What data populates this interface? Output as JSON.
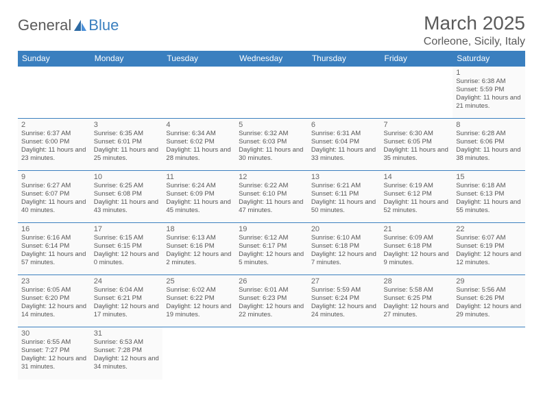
{
  "logo": {
    "text1": "General",
    "text2": "Blue"
  },
  "title": "March 2025",
  "location": "Corleone, Sicily, Italy",
  "columns": [
    "Sunday",
    "Monday",
    "Tuesday",
    "Wednesday",
    "Thursday",
    "Friday",
    "Saturday"
  ],
  "header_bg": "#3a7fbf",
  "cell_border": "#3a7fbf",
  "weeks": [
    [
      null,
      null,
      null,
      null,
      null,
      null,
      {
        "n": "1",
        "sr": "6:38 AM",
        "ss": "5:59 PM",
        "dl": "11 hours and 21 minutes."
      }
    ],
    [
      {
        "n": "2",
        "sr": "6:37 AM",
        "ss": "6:00 PM",
        "dl": "11 hours and 23 minutes."
      },
      {
        "n": "3",
        "sr": "6:35 AM",
        "ss": "6:01 PM",
        "dl": "11 hours and 25 minutes."
      },
      {
        "n": "4",
        "sr": "6:34 AM",
        "ss": "6:02 PM",
        "dl": "11 hours and 28 minutes."
      },
      {
        "n": "5",
        "sr": "6:32 AM",
        "ss": "6:03 PM",
        "dl": "11 hours and 30 minutes."
      },
      {
        "n": "6",
        "sr": "6:31 AM",
        "ss": "6:04 PM",
        "dl": "11 hours and 33 minutes."
      },
      {
        "n": "7",
        "sr": "6:30 AM",
        "ss": "6:05 PM",
        "dl": "11 hours and 35 minutes."
      },
      {
        "n": "8",
        "sr": "6:28 AM",
        "ss": "6:06 PM",
        "dl": "11 hours and 38 minutes."
      }
    ],
    [
      {
        "n": "9",
        "sr": "6:27 AM",
        "ss": "6:07 PM",
        "dl": "11 hours and 40 minutes."
      },
      {
        "n": "10",
        "sr": "6:25 AM",
        "ss": "6:08 PM",
        "dl": "11 hours and 43 minutes."
      },
      {
        "n": "11",
        "sr": "6:24 AM",
        "ss": "6:09 PM",
        "dl": "11 hours and 45 minutes."
      },
      {
        "n": "12",
        "sr": "6:22 AM",
        "ss": "6:10 PM",
        "dl": "11 hours and 47 minutes."
      },
      {
        "n": "13",
        "sr": "6:21 AM",
        "ss": "6:11 PM",
        "dl": "11 hours and 50 minutes."
      },
      {
        "n": "14",
        "sr": "6:19 AM",
        "ss": "6:12 PM",
        "dl": "11 hours and 52 minutes."
      },
      {
        "n": "15",
        "sr": "6:18 AM",
        "ss": "6:13 PM",
        "dl": "11 hours and 55 minutes."
      }
    ],
    [
      {
        "n": "16",
        "sr": "6:16 AM",
        "ss": "6:14 PM",
        "dl": "11 hours and 57 minutes."
      },
      {
        "n": "17",
        "sr": "6:15 AM",
        "ss": "6:15 PM",
        "dl": "12 hours and 0 minutes."
      },
      {
        "n": "18",
        "sr": "6:13 AM",
        "ss": "6:16 PM",
        "dl": "12 hours and 2 minutes."
      },
      {
        "n": "19",
        "sr": "6:12 AM",
        "ss": "6:17 PM",
        "dl": "12 hours and 5 minutes."
      },
      {
        "n": "20",
        "sr": "6:10 AM",
        "ss": "6:18 PM",
        "dl": "12 hours and 7 minutes."
      },
      {
        "n": "21",
        "sr": "6:09 AM",
        "ss": "6:18 PM",
        "dl": "12 hours and 9 minutes."
      },
      {
        "n": "22",
        "sr": "6:07 AM",
        "ss": "6:19 PM",
        "dl": "12 hours and 12 minutes."
      }
    ],
    [
      {
        "n": "23",
        "sr": "6:05 AM",
        "ss": "6:20 PM",
        "dl": "12 hours and 14 minutes."
      },
      {
        "n": "24",
        "sr": "6:04 AM",
        "ss": "6:21 PM",
        "dl": "12 hours and 17 minutes."
      },
      {
        "n": "25",
        "sr": "6:02 AM",
        "ss": "6:22 PM",
        "dl": "12 hours and 19 minutes."
      },
      {
        "n": "26",
        "sr": "6:01 AM",
        "ss": "6:23 PM",
        "dl": "12 hours and 22 minutes."
      },
      {
        "n": "27",
        "sr": "5:59 AM",
        "ss": "6:24 PM",
        "dl": "12 hours and 24 minutes."
      },
      {
        "n": "28",
        "sr": "5:58 AM",
        "ss": "6:25 PM",
        "dl": "12 hours and 27 minutes."
      },
      {
        "n": "29",
        "sr": "5:56 AM",
        "ss": "6:26 PM",
        "dl": "12 hours and 29 minutes."
      }
    ],
    [
      {
        "n": "30",
        "sr": "6:55 AM",
        "ss": "7:27 PM",
        "dl": "12 hours and 31 minutes."
      },
      {
        "n": "31",
        "sr": "6:53 AM",
        "ss": "7:28 PM",
        "dl": "12 hours and 34 minutes."
      },
      null,
      null,
      null,
      null,
      null
    ]
  ],
  "labels": {
    "sunrise": "Sunrise:",
    "sunset": "Sunset:",
    "daylight": "Daylight:"
  }
}
